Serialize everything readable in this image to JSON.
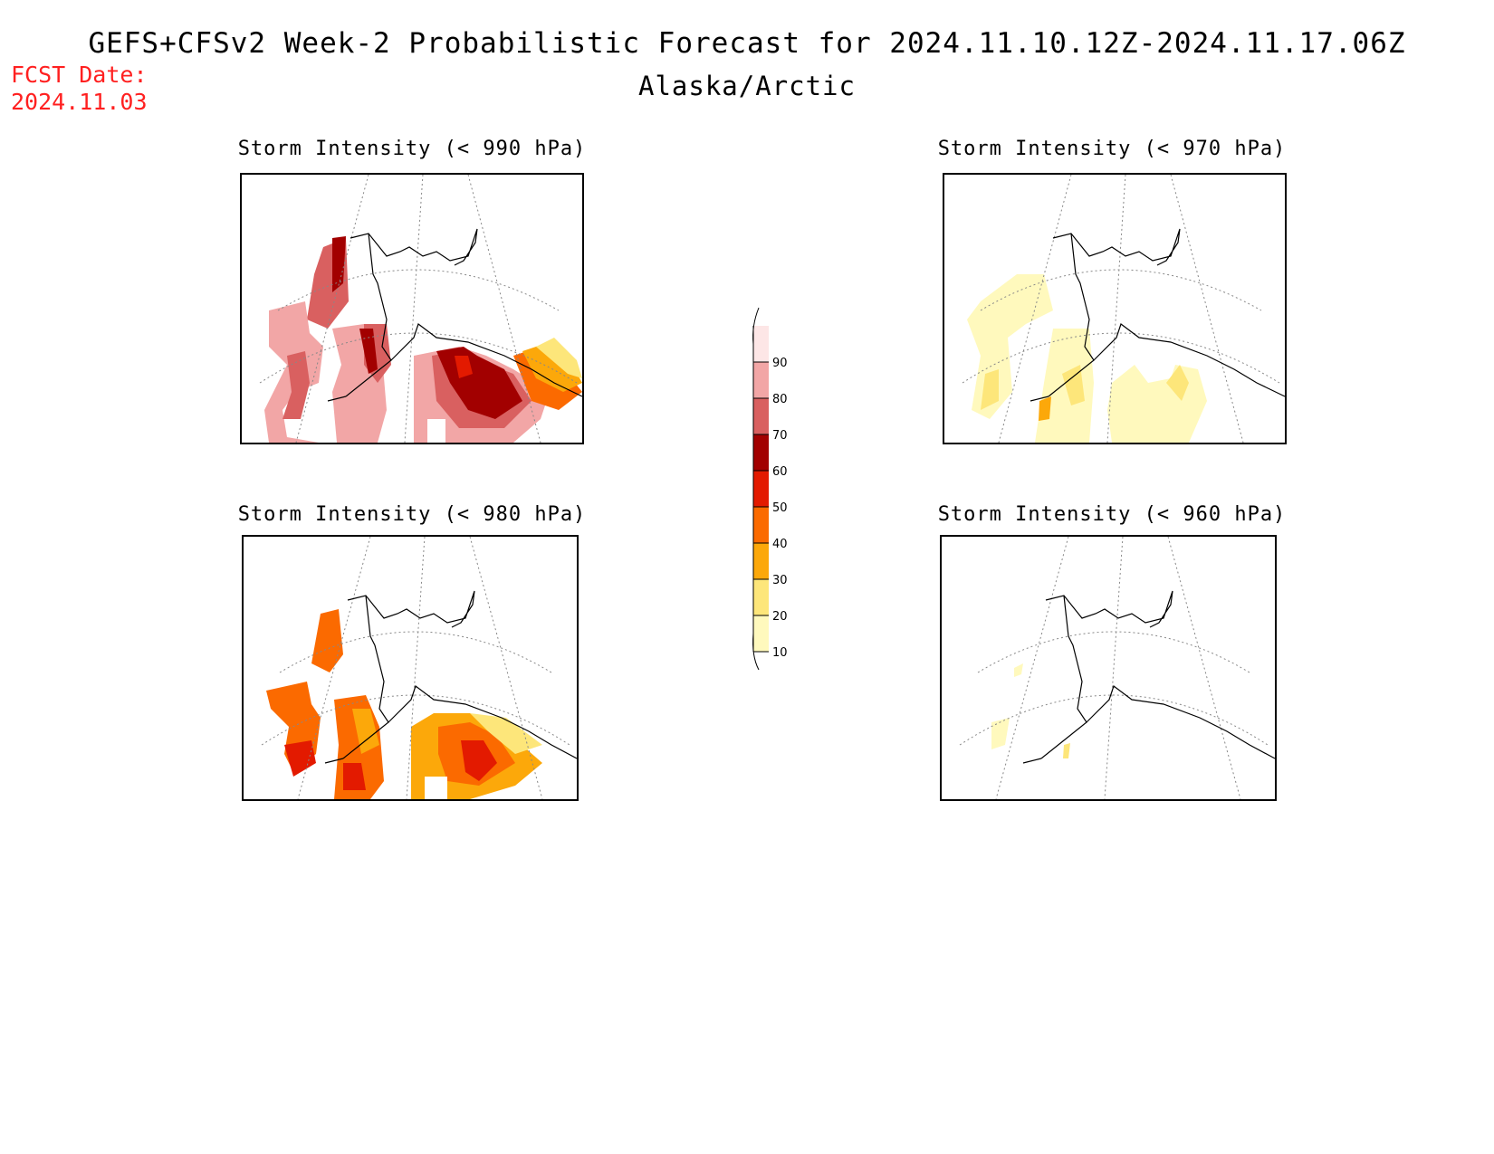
{
  "header": {
    "title": "GEFS+CFSv2 Week-2 Probabilistic Forecast for 2024.11.10.12Z-2024.11.17.06Z",
    "subtitle": "Alaska/Arctic",
    "fcst_label": "FCST Date:",
    "fcst_value": "2024.11.03"
  },
  "panels": [
    {
      "id": "p990",
      "title": "Storm Intensity (< 990 hPa)"
    },
    {
      "id": "p970",
      "title": "Storm Intensity (< 970 hPa)"
    },
    {
      "id": "p980",
      "title": "Storm Intensity (< 980 hPa)"
    },
    {
      "id": "p960",
      "title": "Storm Intensity (< 960 hPa)"
    }
  ],
  "colorbar": {
    "levels": [
      "10",
      "20",
      "30",
      "40",
      "50",
      "60",
      "70",
      "80",
      "90"
    ],
    "colors": [
      "#fff9bd",
      "#fde67a",
      "#fca80a",
      "#fb6a00",
      "#e31a00",
      "#a20000",
      "#d96060",
      "#f2a6a6",
      "#fde6e6"
    ]
  }
}
